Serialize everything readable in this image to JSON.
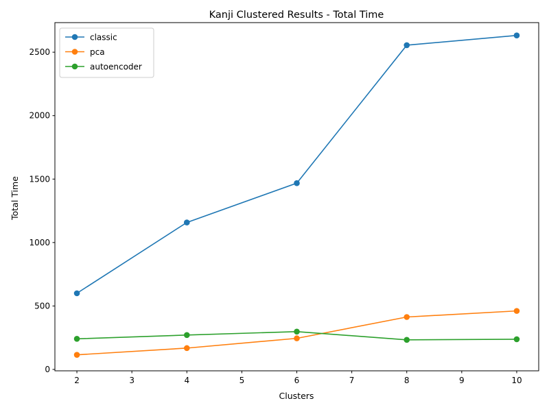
{
  "chart_data": {
    "type": "line",
    "title": "Kanji Clustered Results - Total Time",
    "xlabel": "Clusters",
    "ylabel": "Total Time",
    "x": [
      2,
      4,
      6,
      8,
      10
    ],
    "xlim": [
      1.6,
      10.4
    ],
    "ylim": [
      -11,
      2733
    ],
    "xticks": [
      2,
      3,
      4,
      5,
      6,
      7,
      8,
      9,
      10
    ],
    "yticks": [
      0,
      500,
      1000,
      1500,
      2000,
      2500
    ],
    "grid": false,
    "legend_position": "top-left",
    "series": [
      {
        "name": "classic",
        "color": "#1f77b4",
        "values": [
          600,
          1158,
          1468,
          2555,
          2632
        ]
      },
      {
        "name": "pca",
        "color": "#ff7f0e",
        "values": [
          115,
          168,
          245,
          413,
          461
        ]
      },
      {
        "name": "autoencoder",
        "color": "#2ca02c",
        "values": [
          241,
          271,
          298,
          233,
          238
        ]
      }
    ]
  }
}
